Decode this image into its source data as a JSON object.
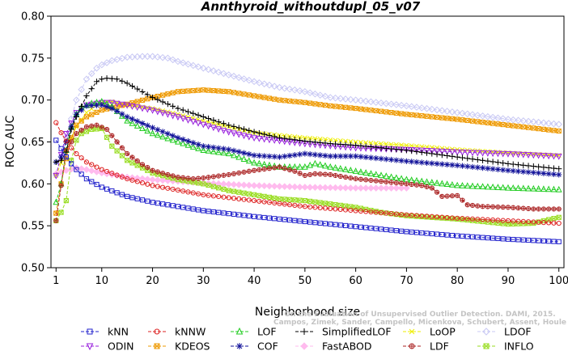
{
  "chart_data": {
    "type": "line",
    "title": "Annthyroid_withoutdupl_05_v07",
    "xlabel": "Neighborhood size",
    "ylabel": "ROC AUC",
    "xlim": [
      0,
      101
    ],
    "ylim": [
      0.5,
      0.8
    ],
    "xticks": [
      1,
      10,
      20,
      30,
      40,
      50,
      60,
      70,
      80,
      90,
      100
    ],
    "yticks": [
      0.5,
      0.55,
      0.6,
      0.65,
      0.7,
      0.75,
      0.8
    ],
    "ytick_labels": [
      "0.50",
      "0.55",
      "0.60",
      "0.65",
      "0.70",
      "0.75",
      "0.80"
    ],
    "grid": false,
    "legend_position": "bottom",
    "watermark": [
      "Campos, Zimek, Sander, Campello, Micenkova, Schubert, Assent, Houle",
      "On the Evaluation of Unsupervised Outlier Detection. DAMI, 2015."
    ],
    "series": [
      {
        "name": "kNN",
        "color": "#2222cc",
        "marker": "square",
        "points": [
          [
            1,
            0.652
          ],
          [
            2,
            0.642
          ],
          [
            3,
            0.632
          ],
          [
            4,
            0.624
          ],
          [
            5,
            0.617
          ],
          [
            7,
            0.606
          ],
          [
            10,
            0.596
          ],
          [
            15,
            0.585
          ],
          [
            20,
            0.578
          ],
          [
            30,
            0.568
          ],
          [
            40,
            0.561
          ],
          [
            50,
            0.555
          ],
          [
            60,
            0.549
          ],
          [
            70,
            0.543
          ],
          [
            80,
            0.538
          ],
          [
            90,
            0.534
          ],
          [
            100,
            0.531
          ]
        ]
      },
      {
        "name": "kNNW",
        "color": "#dd2222",
        "marker": "circle",
        "points": [
          [
            1,
            0.673
          ],
          [
            2,
            0.661
          ],
          [
            3,
            0.651
          ],
          [
            4,
            0.643
          ],
          [
            5,
            0.636
          ],
          [
            7,
            0.626
          ],
          [
            10,
            0.617
          ],
          [
            15,
            0.606
          ],
          [
            20,
            0.598
          ],
          [
            30,
            0.587
          ],
          [
            40,
            0.58
          ],
          [
            50,
            0.573
          ],
          [
            60,
            0.568
          ],
          [
            70,
            0.563
          ],
          [
            80,
            0.559
          ],
          [
            90,
            0.556
          ],
          [
            100,
            0.553
          ]
        ]
      },
      {
        "name": "LOF",
        "color": "#22cc22",
        "marker": "triangle-up",
        "points": [
          [
            1,
            0.578
          ],
          [
            2,
            0.6
          ],
          [
            3,
            0.64
          ],
          [
            4,
            0.668
          ],
          [
            5,
            0.683
          ],
          [
            6,
            0.691
          ],
          [
            8,
            0.696
          ],
          [
            10,
            0.698
          ],
          [
            12,
            0.692
          ],
          [
            15,
            0.675
          ],
          [
            20,
            0.66
          ],
          [
            25,
            0.65
          ],
          [
            30,
            0.64
          ],
          [
            35,
            0.636
          ],
          [
            40,
            0.625
          ],
          [
            45,
            0.62
          ],
          [
            50,
            0.62
          ],
          [
            52,
            0.624
          ],
          [
            55,
            0.62
          ],
          [
            60,
            0.615
          ],
          [
            70,
            0.605
          ],
          [
            80,
            0.598
          ],
          [
            90,
            0.595
          ],
          [
            100,
            0.593
          ]
        ]
      },
      {
        "name": "SimplifiedLOF",
        "color": "#000000",
        "marker": "plus",
        "points": [
          [
            1,
            0.626
          ],
          [
            2,
            0.628
          ],
          [
            3,
            0.638
          ],
          [
            4,
            0.665
          ],
          [
            5,
            0.68
          ],
          [
            7,
            0.705
          ],
          [
            9,
            0.722
          ],
          [
            10,
            0.725
          ],
          [
            11,
            0.726
          ],
          [
            13,
            0.725
          ],
          [
            15,
            0.72
          ],
          [
            20,
            0.703
          ],
          [
            25,
            0.69
          ],
          [
            30,
            0.68
          ],
          [
            35,
            0.67
          ],
          [
            40,
            0.662
          ],
          [
            45,
            0.655
          ],
          [
            50,
            0.651
          ],
          [
            55,
            0.648
          ],
          [
            60,
            0.646
          ],
          [
            65,
            0.643
          ],
          [
            70,
            0.64
          ],
          [
            75,
            0.636
          ],
          [
            80,
            0.632
          ],
          [
            85,
            0.628
          ],
          [
            90,
            0.624
          ],
          [
            95,
            0.621
          ],
          [
            100,
            0.618
          ]
        ]
      },
      {
        "name": "LoOP",
        "color": "#eeee00",
        "marker": "x",
        "points": [
          [
            1,
            0.61
          ],
          [
            3,
            0.64
          ],
          [
            5,
            0.668
          ],
          [
            7,
            0.685
          ],
          [
            9,
            0.694
          ],
          [
            10,
            0.697
          ],
          [
            12,
            0.698
          ],
          [
            15,
            0.694
          ],
          [
            20,
            0.69
          ],
          [
            25,
            0.683
          ],
          [
            30,
            0.675
          ],
          [
            35,
            0.668
          ],
          [
            40,
            0.661
          ],
          [
            50,
            0.655
          ],
          [
            60,
            0.65
          ],
          [
            70,
            0.646
          ],
          [
            80,
            0.641
          ],
          [
            90,
            0.637
          ],
          [
            100,
            0.634
          ]
        ]
      },
      {
        "name": "LDOF",
        "color": "#c8c8f4",
        "marker": "diamond",
        "points": [
          [
            1,
            0.61
          ],
          [
            3,
            0.655
          ],
          [
            5,
            0.7
          ],
          [
            7,
            0.725
          ],
          [
            9,
            0.738
          ],
          [
            10,
            0.742
          ],
          [
            12,
            0.747
          ],
          [
            15,
            0.751
          ],
          [
            18,
            0.752
          ],
          [
            20,
            0.752
          ],
          [
            23,
            0.75
          ],
          [
            25,
            0.746
          ],
          [
            30,
            0.738
          ],
          [
            35,
            0.73
          ],
          [
            40,
            0.722
          ],
          [
            45,
            0.715
          ],
          [
            50,
            0.71
          ],
          [
            55,
            0.703
          ],
          [
            60,
            0.7
          ],
          [
            70,
            0.693
          ],
          [
            80,
            0.685
          ],
          [
            90,
            0.677
          ],
          [
            100,
            0.671
          ]
        ]
      },
      {
        "name": "ODIN",
        "color": "#9922dd",
        "marker": "triangle-down",
        "points": [
          [
            1,
            0.61
          ],
          [
            3,
            0.66
          ],
          [
            5,
            0.685
          ],
          [
            7,
            0.694
          ],
          [
            10,
            0.697
          ],
          [
            12,
            0.697
          ],
          [
            15,
            0.694
          ],
          [
            20,
            0.688
          ],
          [
            25,
            0.68
          ],
          [
            30,
            0.671
          ],
          [
            35,
            0.662
          ],
          [
            40,
            0.655
          ],
          [
            50,
            0.648
          ],
          [
            60,
            0.643
          ],
          [
            70,
            0.641
          ],
          [
            80,
            0.638
          ],
          [
            90,
            0.636
          ],
          [
            100,
            0.633
          ]
        ]
      },
      {
        "name": "KDEOS",
        "color": "#ee9900",
        "marker": "square-filled",
        "points": [
          [
            1,
            0.565
          ],
          [
            2,
            0.6
          ],
          [
            3,
            0.63
          ],
          [
            4,
            0.655
          ],
          [
            5,
            0.67
          ],
          [
            7,
            0.68
          ],
          [
            10,
            0.688
          ],
          [
            15,
            0.695
          ],
          [
            20,
            0.703
          ],
          [
            25,
            0.71
          ],
          [
            30,
            0.712
          ],
          [
            35,
            0.71
          ],
          [
            40,
            0.705
          ],
          [
            45,
            0.7
          ],
          [
            50,
            0.697
          ],
          [
            55,
            0.693
          ],
          [
            60,
            0.69
          ],
          [
            70,
            0.683
          ],
          [
            80,
            0.677
          ],
          [
            90,
            0.67
          ],
          [
            100,
            0.663
          ]
        ]
      },
      {
        "name": "COF",
        "color": "#111199",
        "marker": "asterisk",
        "points": [
          [
            1,
            0.626
          ],
          [
            2,
            0.632
          ],
          [
            3,
            0.65
          ],
          [
            4,
            0.668
          ],
          [
            5,
            0.683
          ],
          [
            7,
            0.693
          ],
          [
            10,
            0.694
          ],
          [
            12,
            0.69
          ],
          [
            15,
            0.68
          ],
          [
            20,
            0.667
          ],
          [
            25,
            0.655
          ],
          [
            30,
            0.645
          ],
          [
            35,
            0.641
          ],
          [
            40,
            0.634
          ],
          [
            45,
            0.632
          ],
          [
            50,
            0.636
          ],
          [
            55,
            0.633
          ],
          [
            60,
            0.633
          ],
          [
            65,
            0.63
          ],
          [
            70,
            0.627
          ],
          [
            80,
            0.622
          ],
          [
            90,
            0.616
          ],
          [
            100,
            0.611
          ]
        ]
      },
      {
        "name": "FastABOD",
        "color": "#ffbbee",
        "marker": "diamond-filled",
        "points": [
          [
            1,
            0.612
          ],
          [
            3,
            0.616
          ],
          [
            5,
            0.619
          ],
          [
            7,
            0.617
          ],
          [
            10,
            0.613
          ],
          [
            15,
            0.608
          ],
          [
            20,
            0.605
          ],
          [
            30,
            0.601
          ],
          [
            40,
            0.598
          ],
          [
            50,
            0.596
          ],
          [
            60,
            0.595
          ],
          [
            70,
            0.595
          ]
        ]
      },
      {
        "name": "LDF",
        "color": "#aa2222",
        "marker": "circle-plus",
        "points": [
          [
            1,
            0.556
          ],
          [
            3,
            0.64
          ],
          [
            5,
            0.66
          ],
          [
            7,
            0.668
          ],
          [
            9,
            0.67
          ],
          [
            11,
            0.665
          ],
          [
            13,
            0.65
          ],
          [
            15,
            0.636
          ],
          [
            18,
            0.623
          ],
          [
            20,
            0.616
          ],
          [
            23,
            0.611
          ],
          [
            25,
            0.608
          ],
          [
            28,
            0.606
          ],
          [
            30,
            0.607
          ],
          [
            35,
            0.611
          ],
          [
            40,
            0.616
          ],
          [
            45,
            0.62
          ],
          [
            48,
            0.615
          ],
          [
            50,
            0.61
          ],
          [
            52,
            0.612
          ],
          [
            55,
            0.611
          ],
          [
            60,
            0.606
          ],
          [
            65,
            0.603
          ],
          [
            70,
            0.6
          ],
          [
            73,
            0.598
          ],
          [
            75,
            0.595
          ],
          [
            77,
            0.585
          ],
          [
            80,
            0.586
          ],
          [
            82,
            0.575
          ],
          [
            85,
            0.573
          ],
          [
            90,
            0.572
          ],
          [
            95,
            0.57
          ],
          [
            100,
            0.57
          ]
        ]
      },
      {
        "name": "INFLO",
        "color": "#99dd22",
        "marker": "x-square",
        "points": [
          [
            1,
            0.556
          ],
          [
            2,
            0.566
          ],
          [
            3,
            0.58
          ],
          [
            4,
            0.628
          ],
          [
            5,
            0.652
          ],
          [
            6,
            0.66
          ],
          [
            8,
            0.665
          ],
          [
            10,
            0.666
          ],
          [
            12,
            0.645
          ],
          [
            15,
            0.628
          ],
          [
            20,
            0.613
          ],
          [
            25,
            0.605
          ],
          [
            30,
            0.6
          ],
          [
            35,
            0.592
          ],
          [
            40,
            0.587
          ],
          [
            45,
            0.582
          ],
          [
            50,
            0.58
          ],
          [
            55,
            0.576
          ],
          [
            60,
            0.572
          ],
          [
            65,
            0.566
          ],
          [
            70,
            0.562
          ],
          [
            75,
            0.56
          ],
          [
            80,
            0.558
          ],
          [
            85,
            0.555
          ],
          [
            90,
            0.552
          ],
          [
            95,
            0.553
          ],
          [
            97,
            0.556
          ],
          [
            100,
            0.56
          ]
        ]
      }
    ]
  }
}
